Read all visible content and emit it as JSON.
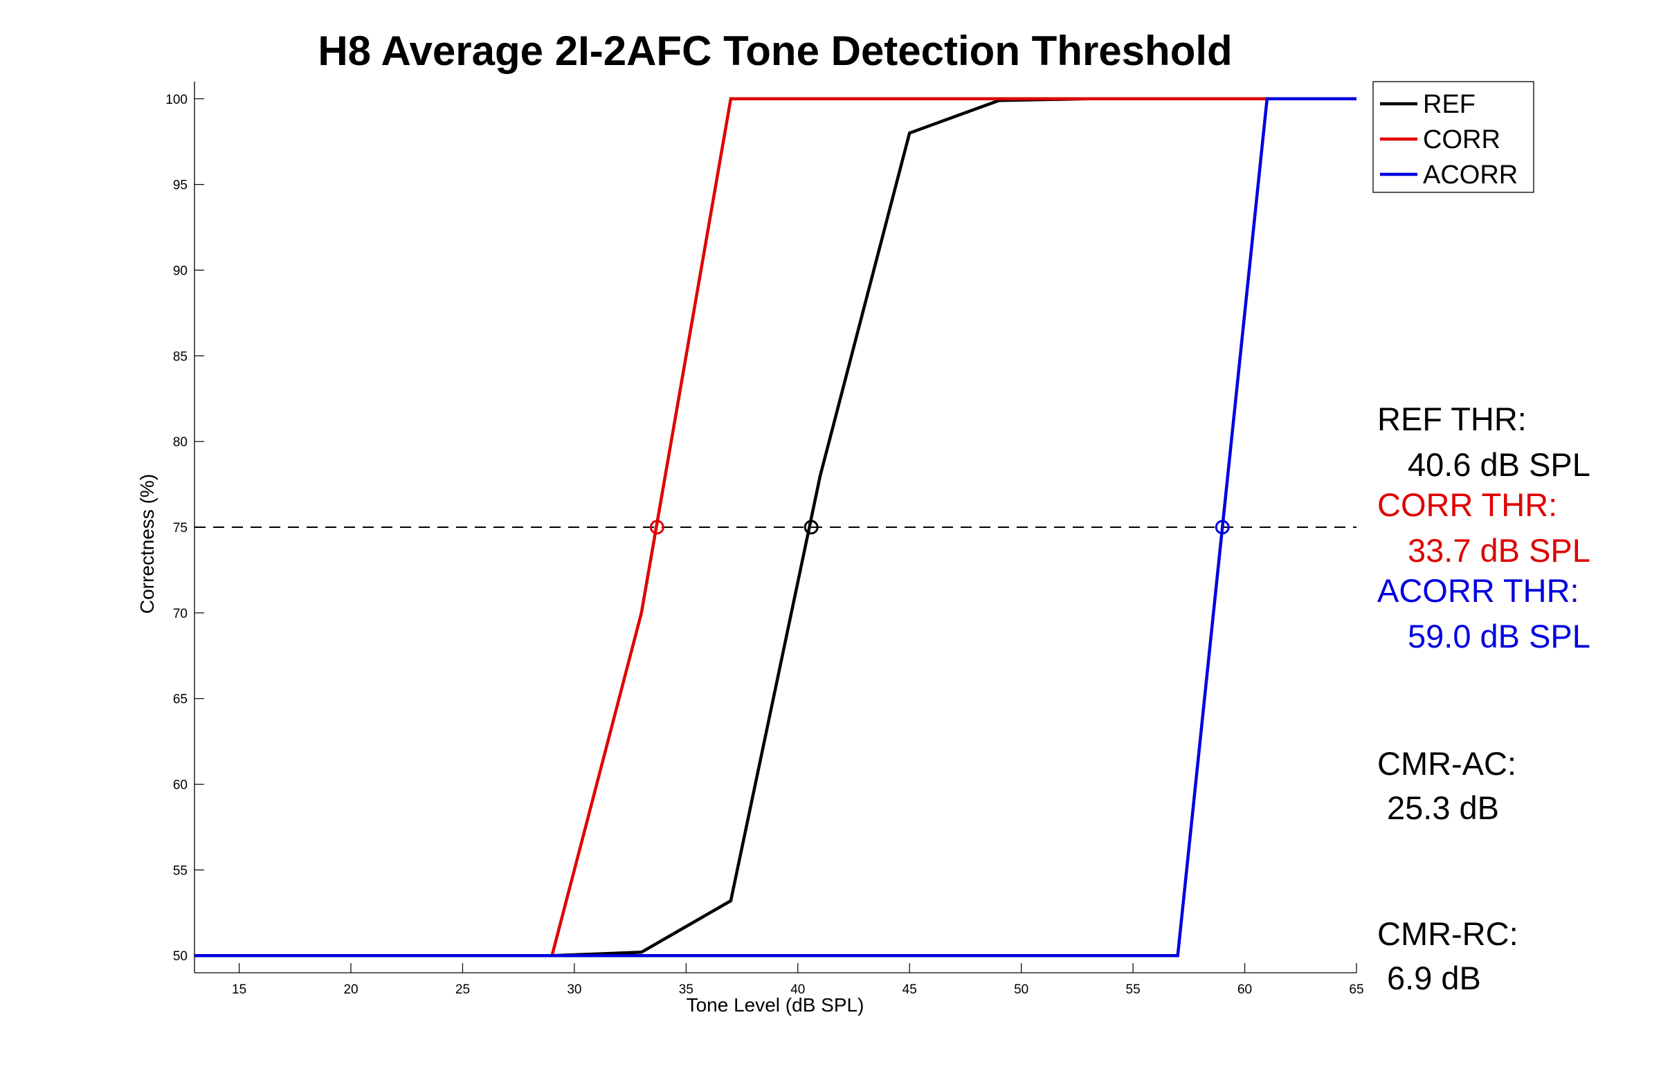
{
  "chart_data": {
    "type": "line",
    "title": "H8 Average 2I-2AFC Tone Detection Threshold",
    "xlabel": "Tone Level (dB SPL)",
    "ylabel": "Correctness (%)",
    "xlim": [
      13,
      65
    ],
    "ylim": [
      49,
      101
    ],
    "xticks": [
      15,
      20,
      25,
      30,
      35,
      40,
      45,
      50,
      55,
      60,
      65
    ],
    "yticks": [
      50,
      55,
      60,
      65,
      70,
      75,
      80,
      85,
      90,
      95,
      100
    ],
    "grid": false,
    "legend_position": "top-right",
    "reference_line": {
      "y": 75,
      "style": "dashed",
      "color": "#000000"
    },
    "series": [
      {
        "name": "REF",
        "color": "#000000",
        "points": [
          [
            13,
            50
          ],
          [
            29,
            50
          ],
          [
            33,
            50.2
          ],
          [
            37,
            53.2
          ],
          [
            41,
            78
          ],
          [
            45,
            98
          ],
          [
            49,
            99.9
          ],
          [
            53,
            100
          ],
          [
            57,
            100
          ],
          [
            61,
            100
          ],
          [
            65,
            100
          ]
        ],
        "threshold": {
          "x": 40.6,
          "y": 75
        }
      },
      {
        "name": "CORR",
        "color": "#e00000",
        "points": [
          [
            13,
            50
          ],
          [
            29,
            50
          ],
          [
            33,
            70
          ],
          [
            37,
            100
          ],
          [
            41,
            100
          ],
          [
            45,
            100
          ],
          [
            49,
            100
          ],
          [
            53,
            100
          ],
          [
            57,
            100
          ],
          [
            61,
            100
          ]
        ],
        "threshold": {
          "x": 33.7,
          "y": 75
        }
      },
      {
        "name": "ACORR",
        "color": "#0000e0",
        "points": [
          [
            13,
            50
          ],
          [
            29,
            50
          ],
          [
            33,
            50
          ],
          [
            37,
            50
          ],
          [
            41,
            50
          ],
          [
            45,
            50
          ],
          [
            49,
            50
          ],
          [
            53,
            50
          ],
          [
            57,
            50
          ],
          [
            61,
            100
          ],
          [
            65,
            100
          ]
        ],
        "threshold": {
          "x": 59.0,
          "y": 75
        }
      }
    ],
    "annotations": [
      {
        "id": "ref_thr_label",
        "text": "REF THR:",
        "color": "#000000"
      },
      {
        "id": "ref_thr_value",
        "text": "40.6 dB SPL",
        "color": "#000000"
      },
      {
        "id": "corr_thr_label",
        "text": "CORR THR:",
        "color": "#e00000"
      },
      {
        "id": "corr_thr_value",
        "text": "33.7 dB SPL",
        "color": "#e00000"
      },
      {
        "id": "acorr_thr_label",
        "text": "ACORR THR:",
        "color": "#0000e0"
      },
      {
        "id": "acorr_thr_value",
        "text": "59.0 dB SPL",
        "color": "#0000e0"
      },
      {
        "id": "cmr_ac_label",
        "text": "CMR-AC:",
        "color": "#000000"
      },
      {
        "id": "cmr_ac_value",
        "text": "25.3 dB",
        "color": "#000000"
      },
      {
        "id": "cmr_rc_label",
        "text": "CMR-RC:",
        "color": "#000000"
      },
      {
        "id": "cmr_rc_value",
        "text": "6.9 dB",
        "color": "#000000"
      }
    ]
  }
}
